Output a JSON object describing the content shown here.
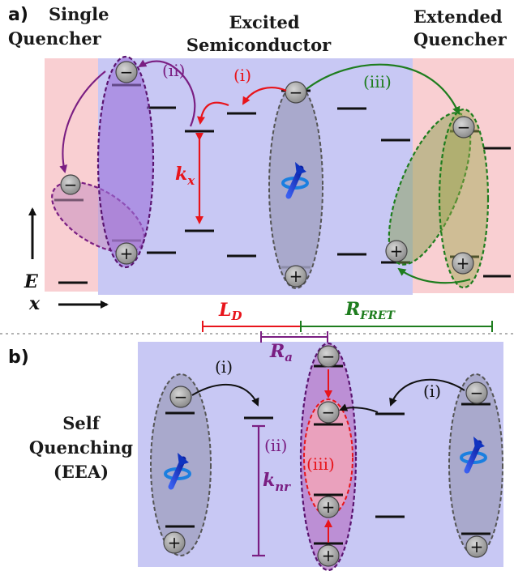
{
  "panel_a": {
    "tag": "a)",
    "left_title": [
      "Single",
      "Quencher"
    ],
    "center_title": [
      "Excited",
      "Semiconductor"
    ],
    "right_title": [
      "Extended",
      "Quencher"
    ],
    "step_i": "(i)",
    "step_ii": "(ii)",
    "step_iii": "(iii)",
    "rate_kx_main": "k",
    "rate_kx_sub": "x",
    "axis_E": "E",
    "axis_x": "x",
    "ld_main": "L",
    "ld_sub": "D",
    "rfret_main": "R",
    "rfret_sub": "FRET",
    "colors": {
      "blue_bg": "#c8c8f4",
      "pink_bg": "#f9cfd2",
      "red": "#e8141b",
      "green": "#1e7d1e",
      "purple": "#7a1e82"
    }
  },
  "panel_b": {
    "tag": "b)",
    "title": [
      "Self",
      "Quenching",
      "(EEA)"
    ],
    "step_i_left": "(i)",
    "step_i_right": "(i)",
    "step_ii": "(ii)",
    "step_iii": "(iii)",
    "ra_main": "R",
    "ra_sub": "a",
    "knr_main": "k",
    "knr_sub": "nr"
  },
  "symbols": {
    "electron": "−",
    "hole": "+"
  },
  "icons": [
    "spin-arrow-icon",
    "electron-icon",
    "hole-icon"
  ]
}
